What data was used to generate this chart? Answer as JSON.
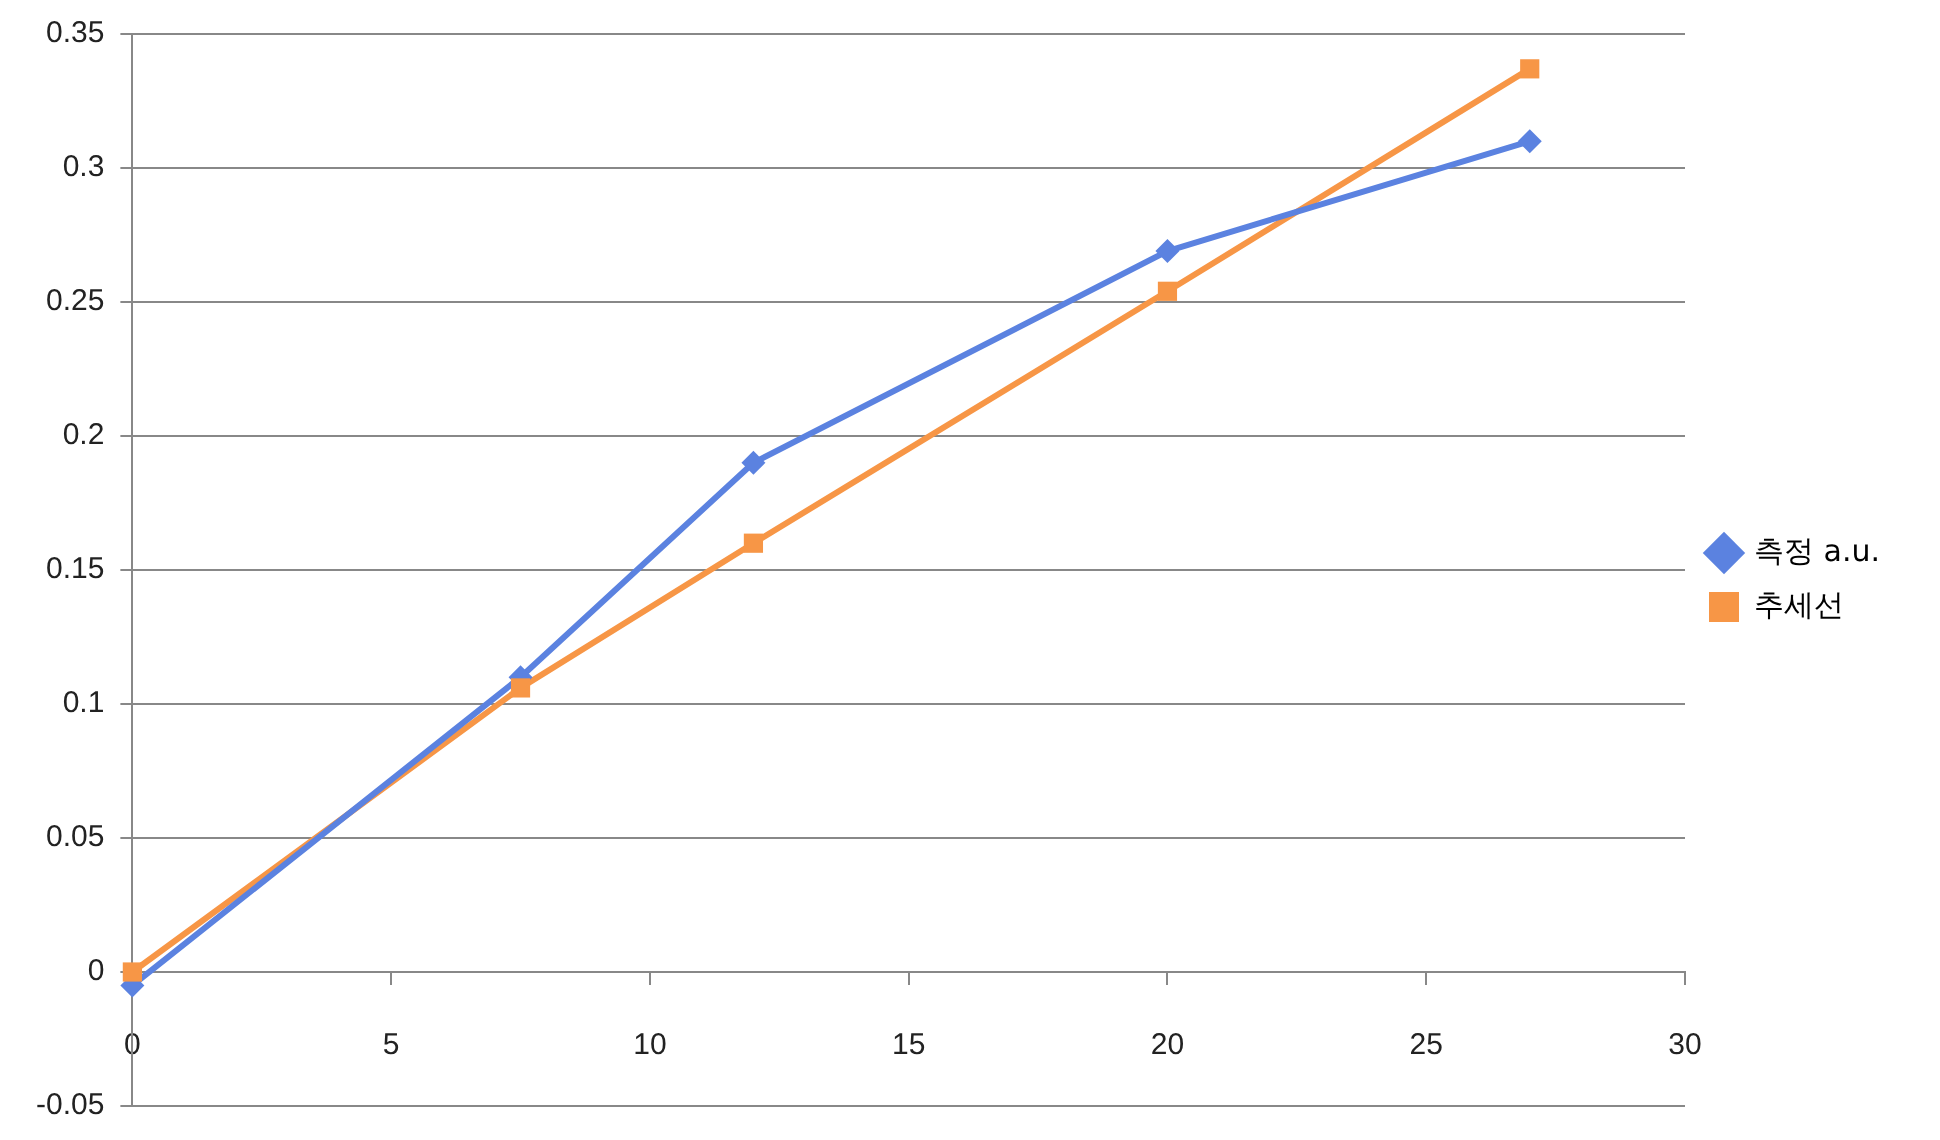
{
  "chart_data": {
    "type": "line",
    "x": [
      0,
      7.5,
      12,
      20,
      27
    ],
    "series": [
      {
        "name": "측정 a.u.",
        "color": "#5b82e0",
        "marker": "diamond",
        "values": [
          -0.005,
          0.11,
          0.19,
          0.269,
          0.31
        ]
      },
      {
        "name": "추세선",
        "color": "#f79646",
        "marker": "square",
        "values": [
          0,
          0.106,
          0.16,
          0.254,
          0.337
        ]
      }
    ],
    "xlim": [
      0,
      30
    ],
    "xticks": [
      0,
      5,
      10,
      15,
      20,
      25,
      30
    ],
    "ylim": [
      -0.05,
      0.35
    ],
    "yticks": [
      -0.05,
      0,
      0.05,
      0.1,
      0.15,
      0.2,
      0.25,
      0.3,
      0.35
    ],
    "grid": "y",
    "legend": "right",
    "line_style": "solid"
  }
}
